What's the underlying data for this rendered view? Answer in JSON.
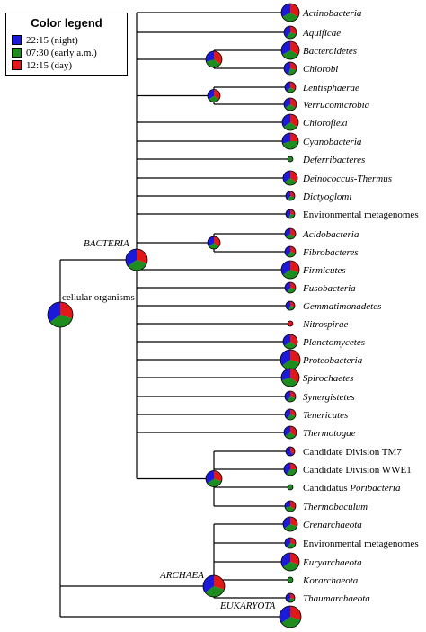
{
  "legend": {
    "title": "Color legend",
    "items": [
      {
        "label": "22:15 (night)",
        "color": "#1a1ad8"
      },
      {
        "label": "07:30 (early a.m.)",
        "color": "#1e8c1e"
      },
      {
        "label": "12:15 (day)",
        "color": "#e01818"
      }
    ]
  },
  "nodes": {
    "root": {
      "label": "cellular organisms",
      "italic": false
    },
    "bacteria": {
      "label": "BACTERIA",
      "italic": true
    },
    "archaea": {
      "label": "ARCHAEA",
      "italic": true
    },
    "eukaryota": {
      "label": "EUKARYOTA",
      "italic": true
    }
  },
  "bacteria_taxa": [
    {
      "label": "Actinobacteria",
      "italic": true,
      "pie": [
        0.33,
        0.34,
        0.33
      ]
    },
    {
      "label": "Aquificae",
      "italic": true,
      "pie": [
        0.4,
        0.3,
        0.3
      ]
    },
    {
      "label": "Bacteroidetes",
      "italic": true,
      "pie": [
        0.33,
        0.34,
        0.33
      ]
    },
    {
      "label": "Chlorobi",
      "italic": true,
      "pie": [
        0.45,
        0.25,
        0.3
      ]
    },
    {
      "label": "Lentisphaerae",
      "italic": true,
      "pie": [
        0.4,
        0.25,
        0.35
      ]
    },
    {
      "label": "Verrucomicrobia",
      "italic": true,
      "pie": [
        0.35,
        0.3,
        0.35
      ]
    },
    {
      "label": "Chloroflexi",
      "italic": true,
      "pie": [
        0.35,
        0.3,
        0.35
      ]
    },
    {
      "label": "Cyanobacteria",
      "italic": true,
      "pie": [
        0.3,
        0.45,
        0.25
      ]
    },
    {
      "label": "Deferribacteres",
      "italic": true,
      "pie": [
        0.0,
        1.0,
        0.0
      ]
    },
    {
      "label": "Deinococcus-Thermus",
      "italic": true,
      "pie": [
        0.35,
        0.3,
        0.35
      ]
    },
    {
      "label": "Dictyoglomi",
      "italic": true,
      "pie": [
        0.4,
        0.3,
        0.3
      ]
    },
    {
      "label": "Environmental metagenomes",
      "italic": false,
      "pie": [
        0.45,
        0.25,
        0.3
      ]
    },
    {
      "label": "Acidobacteria",
      "italic": true,
      "pie": [
        0.35,
        0.3,
        0.35
      ]
    },
    {
      "label": "Fibrobacteres",
      "italic": true,
      "pie": [
        0.4,
        0.3,
        0.3
      ]
    },
    {
      "label": "Firmicutes",
      "italic": true,
      "pie": [
        0.35,
        0.35,
        0.3
      ]
    },
    {
      "label": "Fusobacteria",
      "italic": true,
      "pie": [
        0.4,
        0.3,
        0.3
      ]
    },
    {
      "label": "Gemmatimonadetes",
      "italic": true,
      "pie": [
        0.45,
        0.25,
        0.3
      ]
    },
    {
      "label": "Nitrospirae",
      "italic": true,
      "pie": [
        0.0,
        0.0,
        1.0
      ]
    },
    {
      "label": "Planctomycetes",
      "italic": true,
      "pie": [
        0.35,
        0.3,
        0.35
      ]
    },
    {
      "label": "Proteobacteria",
      "italic": true,
      "pie": [
        0.35,
        0.35,
        0.3
      ]
    },
    {
      "label": "Spirochaetes",
      "italic": true,
      "pie": [
        0.3,
        0.35,
        0.35
      ]
    },
    {
      "label": "Synergistetes",
      "italic": true,
      "pie": [
        0.4,
        0.3,
        0.3
      ]
    },
    {
      "label": "Tenericutes",
      "italic": true,
      "pie": [
        0.4,
        0.3,
        0.3
      ]
    },
    {
      "label": "Thermotogae",
      "italic": true,
      "pie": [
        0.35,
        0.3,
        0.35
      ]
    },
    {
      "label": "Candidate Division TM7",
      "italic": false,
      "pie": [
        0.6,
        0.0,
        0.4
      ]
    },
    {
      "label": "Candidate Division WWE1",
      "italic": false,
      "pie": [
        0.4,
        0.35,
        0.25
      ]
    },
    {
      "label": "Candidatus Poribacteria",
      "italic": false,
      "italic_part": "Poribacteria",
      "pie": [
        0.0,
        1.0,
        0.0
      ]
    },
    {
      "label": "Thermobaculum",
      "italic": true,
      "pie": [
        0.3,
        0.35,
        0.35
      ]
    }
  ],
  "archaea_taxa": [
    {
      "label": "Crenarchaeota",
      "italic": true,
      "pie": [
        0.35,
        0.35,
        0.3
      ]
    },
    {
      "label": "Environmental metagenomes",
      "italic": false,
      "pie": [
        0.4,
        0.3,
        0.3
      ]
    },
    {
      "label": "Euryarchaeota",
      "italic": true,
      "pie": [
        0.35,
        0.35,
        0.3
      ]
    },
    {
      "label": "Korarchaeota",
      "italic": true,
      "pie": [
        0.0,
        1.0,
        0.0
      ]
    },
    {
      "label": "Thaumarchaeota",
      "italic": true,
      "pie": [
        0.45,
        0.25,
        0.3
      ]
    }
  ],
  "internal_nodes": {
    "root": [
      0.35,
      0.35,
      0.3
    ],
    "bacteria": [
      0.35,
      0.35,
      0.3
    ],
    "archaea": [
      0.35,
      0.35,
      0.3
    ],
    "eukaryota": [
      0.35,
      0.35,
      0.3
    ],
    "bact_clade1": [
      0.3,
      0.35,
      0.35
    ],
    "bact_clade2": [
      0.35,
      0.3,
      0.35
    ],
    "bact_clade3": [
      0.35,
      0.3,
      0.35
    ],
    "bact_clade4": [
      0.35,
      0.35,
      0.3
    ]
  }
}
